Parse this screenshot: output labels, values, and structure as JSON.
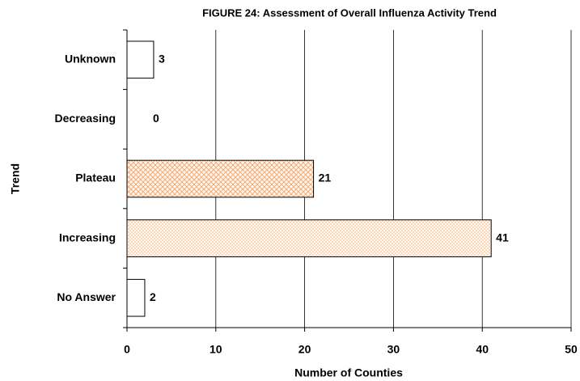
{
  "chart_data": {
    "type": "hbar",
    "title": "FIGURE 24: Assessment of Overall Influenza Activity Trend",
    "x_label": "Number of Counties",
    "y_label": "Trend",
    "categories": [
      "Unknown",
      "Decreasing",
      "Plateau",
      "Increasing",
      "No Answer"
    ],
    "values": [
      3,
      0,
      21,
      41,
      2
    ],
    "patterns": [
      "none",
      "none",
      "crosshatch",
      "dots",
      "none"
    ],
    "colors": [
      "#ffffff",
      "#ffffff",
      "#f5a66a",
      "#f5a66a",
      "#ffffff"
    ],
    "xlim": [
      0,
      50
    ],
    "xticks": [
      0,
      10,
      20,
      30,
      40,
      50
    ],
    "grid": true
  }
}
